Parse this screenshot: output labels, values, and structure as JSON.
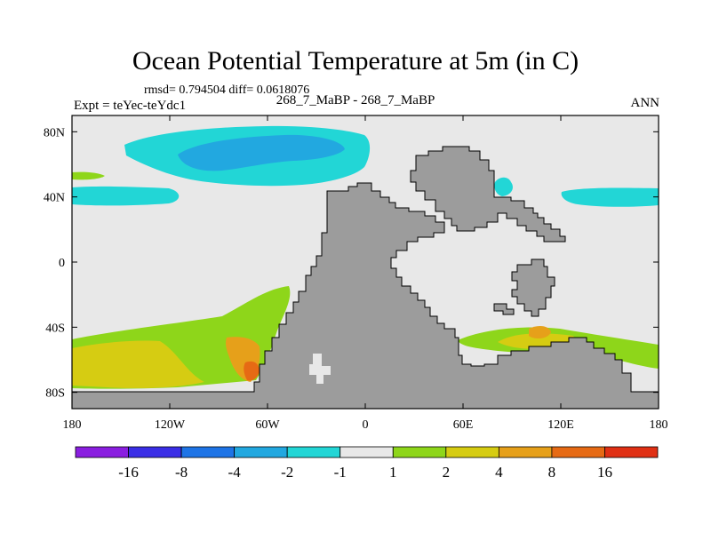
{
  "chart_data": {
    "type": "heatmap",
    "title": "Ocean Potential Temperature at 5m (in C)",
    "stats_text": "rmsd= 0.794504 diff= 0.0618076",
    "left_label": "Expt = teYec-teYdc1",
    "center_label": "268_7_MaBP - 268_7_MaBP",
    "right_label": "ANN",
    "x_ticks": [
      "180",
      "120W",
      "60W",
      "0",
      "60E",
      "120E",
      "180"
    ],
    "y_ticks": [
      "80N",
      "40N",
      "0",
      "40S",
      "80S"
    ],
    "lon_range": [
      -180,
      180
    ],
    "lat_range": [
      -90,
      90
    ],
    "colorbar": {
      "labels": [
        "-16",
        "-8",
        "-4",
        "-2",
        "-1",
        "1",
        "2",
        "4",
        "8",
        "16"
      ],
      "colors": [
        "#8a1ee0",
        "#3a2ee6",
        "#1e74e6",
        "#22a8e0",
        "#22d6d6",
        "#e8e8e8",
        "#8ed61a",
        "#d6cc12",
        "#e6a01a",
        "#e66a14",
        "#e03014"
      ]
    },
    "colors": {
      "land": "#9c9c9c",
      "ocean_neutral": "#e8e8e8",
      "cyan": "#22d6d6",
      "light_blue": "#22a8e0",
      "green": "#8ed61a",
      "yellow": "#d6cc12",
      "orange": "#e6a01a",
      "dark_orange": "#e66a14"
    }
  }
}
